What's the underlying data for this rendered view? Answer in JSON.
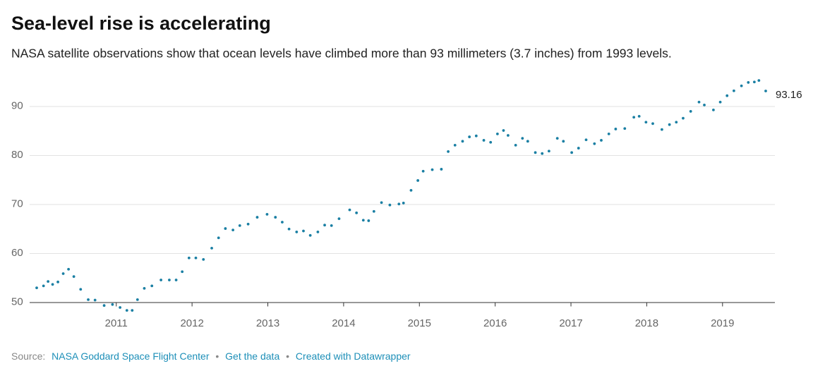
{
  "chart_data": {
    "type": "dotted-line",
    "title": "Sea-level rise is accelerating",
    "subtitle": "NASA satellite observations show that ocean levels have climbed more than 93 millimeters (3.7 inches) from 1993 levels.",
    "color": "#1a7fa3",
    "grid": true,
    "x": [
      2009.95,
      2010.04,
      2010.1,
      2010.16,
      2010.23,
      2010.3,
      2010.37,
      2010.44,
      2010.53,
      2010.63,
      2010.72,
      2010.84,
      2010.95,
      2011.05,
      2011.14,
      2011.21,
      2011.28,
      2011.37,
      2011.47,
      2011.59,
      2011.7,
      2011.79,
      2011.87,
      2011.96,
      2012.05,
      2012.15,
      2012.26,
      2012.35,
      2012.44,
      2012.54,
      2012.63,
      2012.74,
      2012.86,
      2012.99,
      2013.1,
      2013.19,
      2013.28,
      2013.38,
      2013.47,
      2013.56,
      2013.66,
      2013.75,
      2013.84,
      2013.94,
      2014.08,
      2014.17,
      2014.26,
      2014.33,
      2014.4,
      2014.5,
      2014.61,
      2014.73,
      2014.79,
      2014.89,
      2014.98,
      2015.05,
      2015.17,
      2015.29,
      2015.38,
      2015.47,
      2015.57,
      2015.66,
      2015.75,
      2015.85,
      2015.94,
      2016.03,
      2016.11,
      2016.17,
      2016.27,
      2016.36,
      2016.43,
      2016.53,
      2016.62,
      2016.71,
      2016.82,
      2016.9,
      2017.01,
      2017.1,
      2017.2,
      2017.31,
      2017.4,
      2017.5,
      2017.59,
      2017.71,
      2017.83,
      2017.9,
      2017.99,
      2018.08,
      2018.2,
      2018.3,
      2018.39,
      2018.48,
      2018.58,
      2018.69,
      2018.76,
      2018.88,
      2018.97,
      2019.06,
      2019.15,
      2019.25,
      2019.34,
      2019.42,
      2019.48,
      2019.57
    ],
    "values": [
      53.0,
      53.4,
      54.3,
      53.7,
      54.2,
      55.9,
      56.8,
      55.3,
      52.7,
      50.6,
      50.5,
      49.4,
      49.6,
      49.0,
      48.4,
      48.4,
      50.6,
      52.9,
      53.4,
      54.6,
      54.6,
      54.6,
      56.3,
      59.1,
      59.1,
      58.8,
      61.1,
      63.2,
      65.1,
      64.8,
      65.7,
      66.0,
      67.4,
      68.0,
      67.4,
      66.4,
      65.0,
      64.4,
      64.6,
      63.7,
      64.4,
      65.8,
      65.7,
      67.1,
      68.9,
      68.3,
      66.8,
      66.7,
      68.6,
      70.4,
      69.9,
      70.1,
      70.3,
      72.9,
      74.9,
      76.8,
      77.1,
      77.2,
      80.8,
      82.1,
      82.9,
      83.8,
      84.0,
      83.1,
      82.7,
      84.4,
      85.1,
      84.1,
      82.1,
      83.5,
      82.9,
      80.6,
      80.4,
      80.9,
      83.5,
      82.9,
      80.6,
      81.5,
      83.2,
      82.4,
      83.1,
      84.4,
      85.4,
      85.5,
      87.8,
      88.0,
      86.8,
      86.5,
      85.3,
      86.3,
      86.8,
      87.6,
      89.0,
      90.9,
      90.3,
      89.3,
      90.9,
      92.2,
      93.2,
      94.2,
      94.9,
      95.0,
      95.3,
      93.16
    ],
    "xlim": [
      2009.95,
      2019.57
    ],
    "xticks": [
      2011,
      2012,
      2013,
      2014,
      2015,
      2016,
      2017,
      2018,
      2019
    ],
    "ylim": [
      49.5,
      96.5
    ],
    "yticks": [
      50,
      60,
      70,
      80,
      90
    ],
    "footer": {
      "source_label": "Source:",
      "source": "NASA Goddard Space Flight Center",
      "separator": "•",
      "links": [
        "Get the data",
        "Created with Datawrapper"
      ]
    }
  }
}
